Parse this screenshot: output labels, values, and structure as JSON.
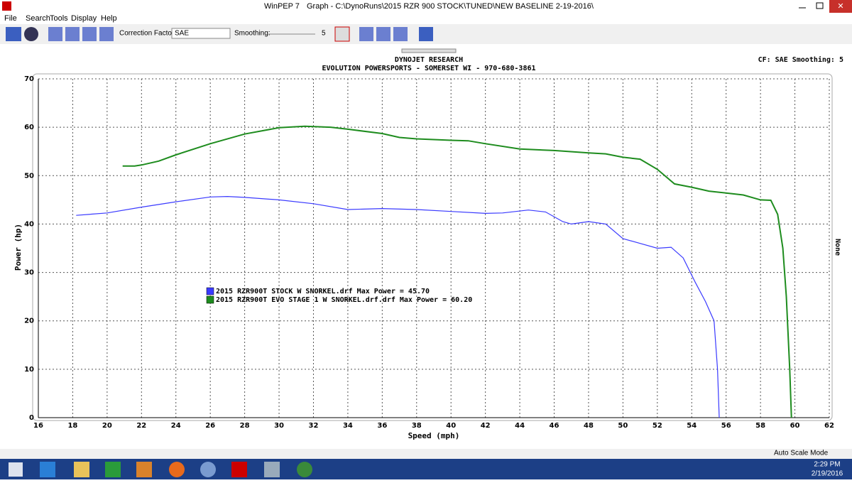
{
  "window": {
    "app": "WinPEP 7",
    "title": "Graph - C:\\DynoRuns\\2015 RZR 900 STOCK\\TUNED\\NEW BASELINE 2-19-2016\\"
  },
  "menu": [
    "File",
    "Search",
    "Tools",
    "Display",
    "Help"
  ],
  "toolbar": {
    "correction_label": "Correction Factor:",
    "correction_value": "SAE",
    "smoothing_label": "Smoothing:",
    "smoothing_value": "5"
  },
  "header": {
    "line1": "DYNOJET RESEARCH",
    "line2": "EVOLUTION POWERSPORTS - SOMERSET WI - 970-680-3861",
    "right": "CF: SAE  Smoothing: 5",
    "side": "None"
  },
  "chart_data": {
    "type": "line",
    "xlabel": "Speed (mph)",
    "ylabel": "Power (hp)",
    "xlim": [
      16,
      62
    ],
    "xticks": [
      16,
      18,
      20,
      22,
      24,
      26,
      28,
      30,
      32,
      34,
      36,
      38,
      40,
      42,
      44,
      46,
      48,
      50,
      52,
      54,
      56,
      58,
      60,
      62
    ],
    "ylim": [
      0,
      70
    ],
    "yticks": [
      0,
      10,
      20,
      30,
      40,
      50,
      60,
      70
    ],
    "grid": true,
    "series": [
      {
        "name": "2015 RZR900T STOCK W SNORKEL.drf Max Power = 45.70",
        "color": "#3a3aff",
        "x": [
          18.2,
          20,
          22,
          24,
          26,
          27,
          28,
          30,
          32,
          34,
          36,
          38,
          40,
          42,
          43,
          44.5,
          45.5,
          46.5,
          47,
          48,
          49,
          50,
          51,
          52,
          52.8,
          53.5,
          54.2,
          54.8,
          55.3,
          55.5,
          55.6
        ],
        "values": [
          41.8,
          42.3,
          43.5,
          44.6,
          45.6,
          45.7,
          45.5,
          45.0,
          44.2,
          43.0,
          43.2,
          43.0,
          42.6,
          42.2,
          42.3,
          42.9,
          42.5,
          40.5,
          40.0,
          40.5,
          40.0,
          37.0,
          36.0,
          35.0,
          35.2,
          33.0,
          28,
          24,
          20,
          10,
          0
        ]
      },
      {
        "name": "2015 RZR900T EVO STAGE 1 W SNORKEL.drf.drf Max Power = 60.20",
        "color": "#1e8c1e",
        "x": [
          20.9,
          21.6,
          22,
          23,
          24,
          26,
          28,
          30,
          31.5,
          33,
          34,
          36,
          37,
          38,
          40,
          41,
          42,
          44,
          46,
          48,
          49,
          50,
          51,
          52,
          53,
          54,
          55,
          56,
          57,
          58,
          58.6,
          59,
          59.3,
          59.5,
          59.7,
          59.8
        ],
        "values": [
          52.0,
          52.0,
          52.2,
          53,
          54.3,
          56.6,
          58.6,
          59.9,
          60.2,
          60.0,
          59.6,
          58.7,
          57.9,
          57.6,
          57.3,
          57.2,
          56.6,
          55.5,
          55.2,
          54.7,
          54.5,
          53.8,
          53.4,
          51.3,
          48.3,
          47.6,
          46.8,
          46.4,
          46.0,
          45.0,
          44.9,
          42,
          35,
          25,
          10,
          0
        ]
      }
    ]
  },
  "status": "Auto Scale Mode",
  "clock": {
    "time": "2:29 PM",
    "date": "2/19/2016"
  }
}
